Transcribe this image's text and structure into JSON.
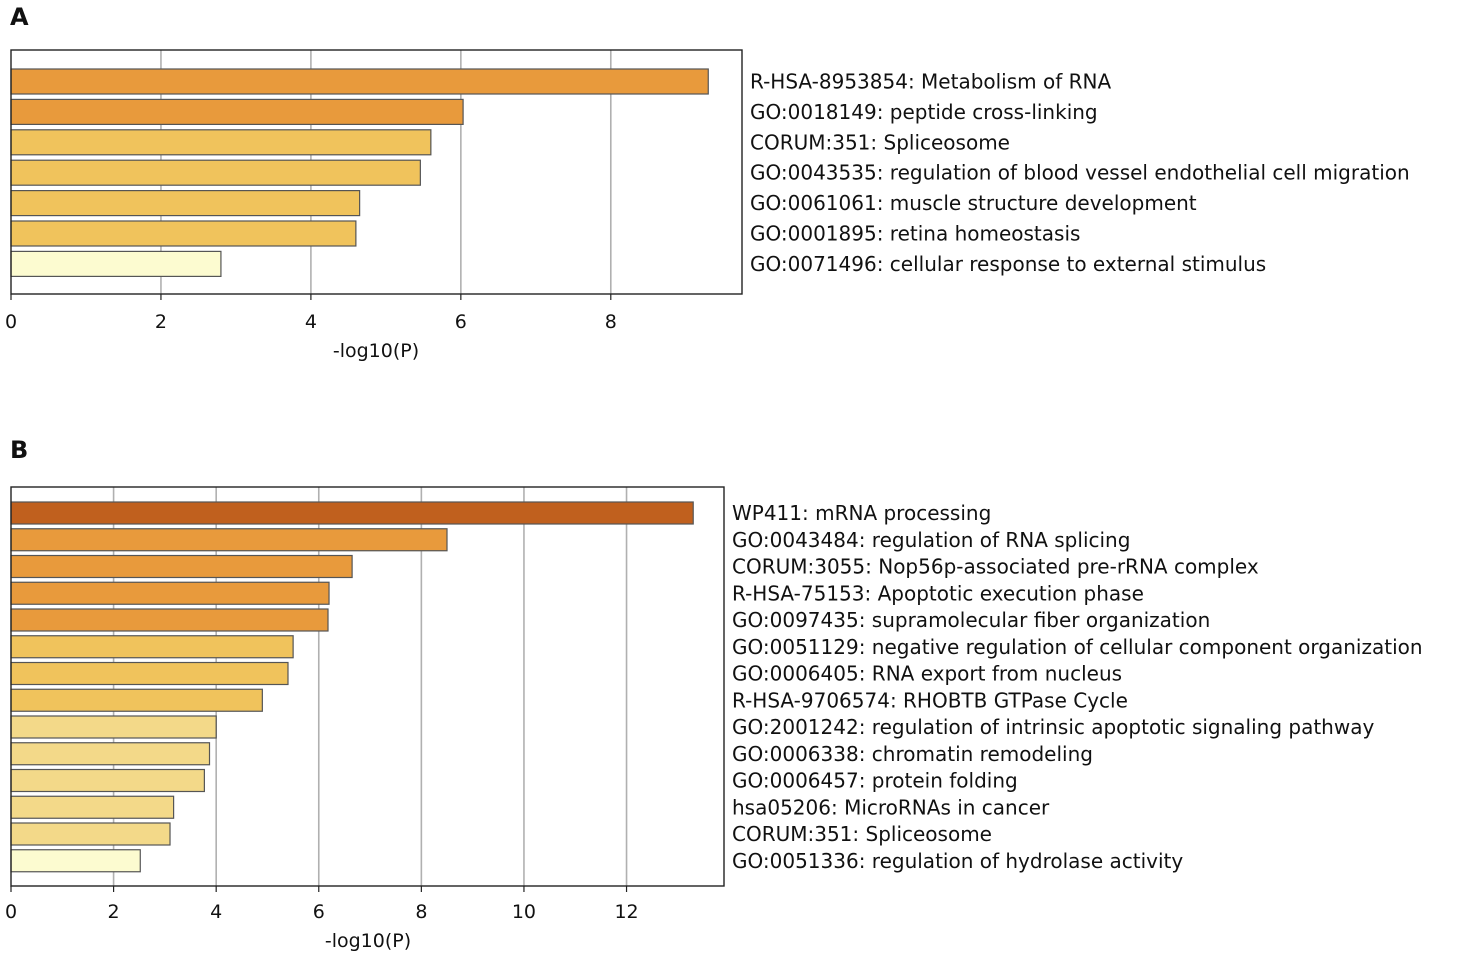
{
  "figure": {
    "panel_labels": [
      "A",
      "B"
    ]
  },
  "colors": {
    "dark": "#c0601e",
    "orange": "#e89a3c",
    "gold": "#f0c35c",
    "light": "#f3d989",
    "pale": "#fcfbd0",
    "edge": "#555555",
    "grid": "#b0b0b0",
    "axis": "#222222"
  },
  "chart_data": [
    {
      "type": "bar",
      "orientation": "horizontal",
      "panel": "A",
      "xlabel": "-log10(P)",
      "xlim": [
        0,
        9.75
      ],
      "xticks": [
        0,
        2,
        4,
        6,
        8
      ],
      "grid": true,
      "categories": [
        "R-HSA-8953854: Metabolism of RNA",
        "GO:0018149: peptide cross-linking",
        "CORUM:351: Spliceosome",
        "GO:0043535: regulation of blood vessel endothelial cell migration",
        "GO:0061061: muscle structure development",
        "GO:0001895: retina homeostasis",
        "GO:0071496: cellular response to external stimulus"
      ],
      "values": [
        9.3,
        6.03,
        5.6,
        5.46,
        4.65,
        4.6,
        2.8
      ],
      "bar_colors": [
        "orange",
        "orange",
        "gold",
        "gold",
        "gold",
        "gold",
        "pale"
      ]
    },
    {
      "type": "bar",
      "orientation": "horizontal",
      "panel": "B",
      "xlabel": "-log10(P)",
      "xlim": [
        0,
        13.9
      ],
      "xticks": [
        0,
        2,
        4,
        6,
        8,
        10,
        12
      ],
      "grid": true,
      "categories": [
        "WP411: mRNA processing",
        "GO:0043484: regulation of RNA splicing",
        "CORUM:3055: Nop56p-associated pre-rRNA complex",
        "R-HSA-75153: Apoptotic execution phase",
        "GO:0097435: supramolecular fiber organization",
        "GO:0051129: negative regulation of cellular component organization",
        "GO:0006405: RNA export from nucleus",
        "R-HSA-9706574: RHOBTB GTPase Cycle",
        "GO:2001242: regulation of intrinsic apoptotic signaling pathway",
        "GO:0006338: chromatin remodeling",
        "GO:0006457: protein folding",
        "hsa05206: MicroRNAs in cancer",
        "CORUM:351: Spliceosome",
        "GO:0051336: regulation of hydrolase activity"
      ],
      "values": [
        13.3,
        8.5,
        6.65,
        6.2,
        6.18,
        5.5,
        5.4,
        4.9,
        4.0,
        3.87,
        3.77,
        3.17,
        3.1,
        2.52
      ],
      "bar_colors": [
        "dark",
        "orange",
        "orange",
        "orange",
        "orange",
        "gold",
        "gold",
        "gold",
        "light",
        "light",
        "light",
        "light",
        "light",
        "pale"
      ]
    }
  ]
}
